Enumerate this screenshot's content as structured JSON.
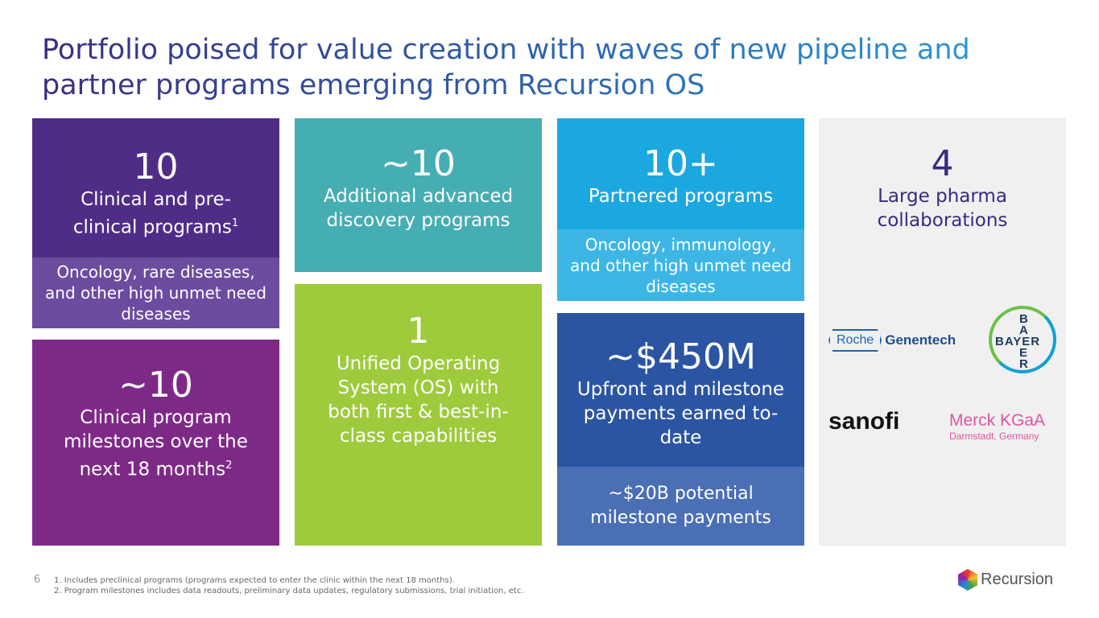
{
  "title": "Portfolio poised for value creation with waves of new pipeline and partner programs emerging from Recursion OS",
  "cards": {
    "clinical": {
      "number": "10",
      "label": "Clinical and pre-clinical programs",
      "sup": "1",
      "sub": "Oncology, rare diseases, and other high unmet need diseases"
    },
    "milestones": {
      "number": "~10",
      "label": "Clinical program milestones over the next 18 months",
      "sup": "2"
    },
    "discovery": {
      "number": "~10",
      "label": "Additional advanced discovery programs"
    },
    "os": {
      "number": "1",
      "label": "Unified Operating System (OS) with both first & best-in-class capabilities"
    },
    "partnered": {
      "number": "10+",
      "label": "Partnered programs",
      "sub": "Oncology, immunology, and other high unmet need diseases"
    },
    "payments": {
      "number": "~$450M",
      "label": "Upfront and milestone payments earned to-date",
      "sub": "~$20B potential milestone payments"
    },
    "pharma": {
      "number": "4",
      "label": "Large pharma collaborations"
    }
  },
  "logos": {
    "roche": "Roche",
    "genentech": "Genentech",
    "bayer_h": "BAYER",
    "bayer_v": [
      "B",
      "A",
      "E",
      "R"
    ],
    "sanofi": "sanofi",
    "merck": "Merck KGaA",
    "merck_sub": "Darmstadt, Germany"
  },
  "footer": {
    "page": "6",
    "notes": [
      "1.  Includes preclinical programs (programs expected to enter the clinic within the next 18 months).",
      "2.  Program milestones includes data readouts, preliminary data updates, regulatory submissions, trial initiation, etc."
    ],
    "brand": "Recursion"
  },
  "colors": {
    "purple": "#4f2d87",
    "magenta": "#7d2a87",
    "teal": "#45aeb3",
    "green": "#9ecb3b",
    "blue": "#1ba8e0",
    "navy": "#2b55a3"
  }
}
